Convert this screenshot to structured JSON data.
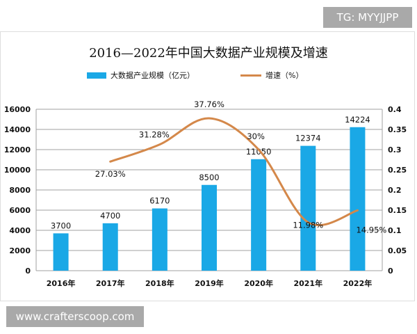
{
  "watermarks": {
    "top": "TG: MYYJJPP",
    "bottom": "www.crafterscoop.com"
  },
  "colors": {
    "bar": "#1aa8e6",
    "line": "#d4884a",
    "grid": "#a0a0a0"
  },
  "chart_data": {
    "type": "bar+line",
    "title": "2016—2022年中国大数据产业规模及增速",
    "legend_position": "top",
    "categories": [
      "2016年",
      "2017年",
      "2018年",
      "2019年",
      "2020年",
      "2021年",
      "2022年"
    ],
    "series": [
      {
        "name": "大数据产业规模（亿元）",
        "type": "bar",
        "axis": "left",
        "values": [
          3700,
          4700,
          6170,
          8500,
          11050,
          12374,
          14224
        ],
        "labels": [
          "3700",
          "4700",
          "6170",
          "8500",
          "11050",
          "12374",
          "14224"
        ]
      },
      {
        "name": "增速（%）",
        "type": "line",
        "axis": "right",
        "smooth": true,
        "values": [
          null,
          0.2703,
          0.3128,
          0.3776,
          0.3,
          0.1198,
          0.1495
        ],
        "labels": [
          "",
          "27.03%",
          "31.28%",
          "37.76%",
          "30%",
          "11.98%",
          "14.95%"
        ]
      }
    ],
    "y_left": {
      "range": [
        0,
        16000
      ],
      "ticks": [
        "0",
        "2000",
        "4000",
        "6000",
        "8000",
        "10000",
        "12000",
        "14000",
        "16000"
      ]
    },
    "y_right": {
      "range": [
        0,
        0.4
      ],
      "ticks": [
        "0",
        "0.05",
        "0.1",
        "0.15",
        "0.2",
        "0.25",
        "0.3",
        "0.35",
        "0.4"
      ]
    },
    "grid": true
  }
}
